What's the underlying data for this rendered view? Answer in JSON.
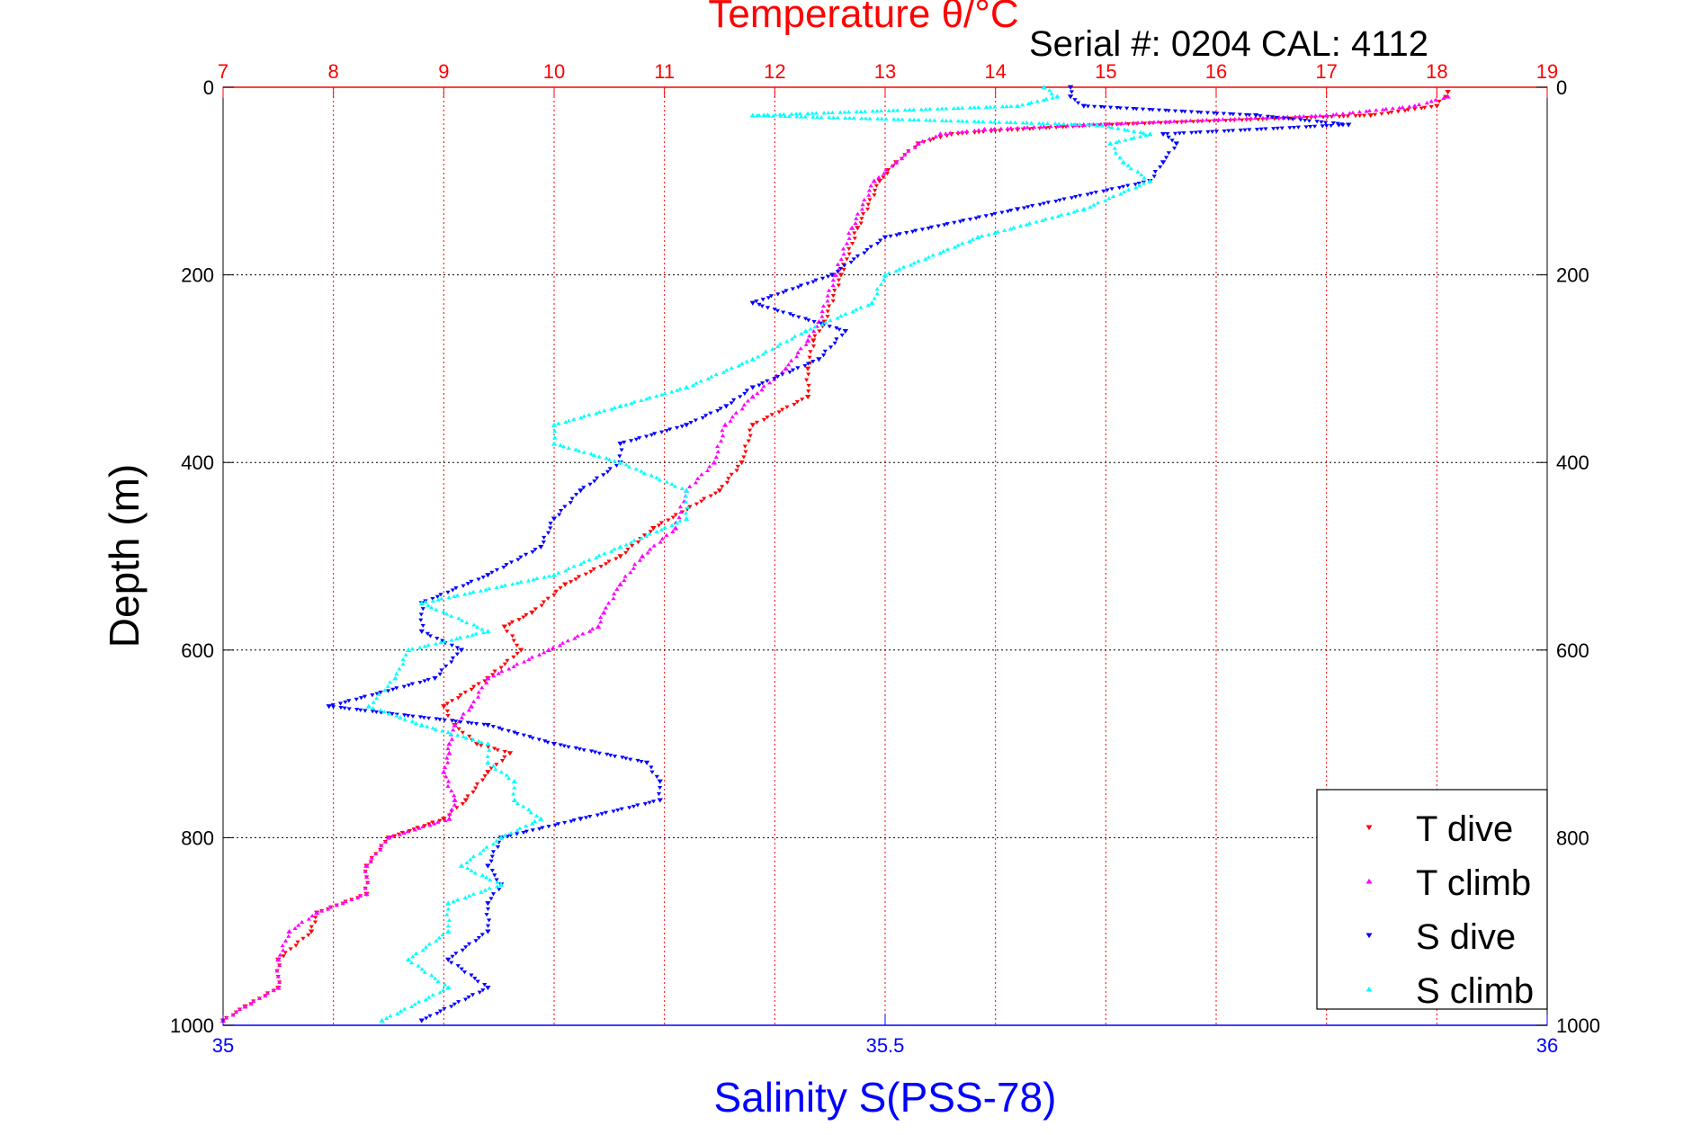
{
  "colors": {
    "temperature_axis": "#ff0000",
    "salinity_axis": "#0000ff",
    "depth_axis": "#000000",
    "t_dive": "#ff0000",
    "t_climb": "#ff00ff",
    "s_dive": "#0000ff",
    "s_climb": "#00ffff"
  },
  "chart_data": {
    "type": "scatter",
    "title": "Temperature θ/°C",
    "subtitle": "Serial #: 0204  CAL: 4112",
    "xlabel": "Salinity S(PSS-78)",
    "ylabel": "Depth (m)",
    "top_axis": {
      "label": "Temperature θ/°C",
      "range": [
        7,
        19
      ],
      "ticks": [
        "7",
        "8",
        "9",
        "10",
        "11",
        "12",
        "13",
        "14",
        "15",
        "16",
        "17",
        "18",
        "19"
      ]
    },
    "bottom_axis": {
      "label": "Salinity S(PSS-78)",
      "range": [
        35,
        36
      ],
      "ticks": [
        "35",
        "35.5",
        "36"
      ]
    },
    "y_axis": {
      "label": "Depth (m)",
      "range": [
        0,
        1000
      ],
      "reversed": true,
      "ticks": [
        "0",
        "200",
        "400",
        "600",
        "800",
        "1000"
      ]
    },
    "grid": true,
    "legend_position": "bottom-right",
    "series": [
      {
        "name": "T dive",
        "axis": "temperature",
        "marker": "triangle-down",
        "color": "#ff0000",
        "depth": [
          5,
          20,
          30,
          40,
          45,
          50,
          60,
          80,
          100,
          150,
          200,
          250,
          270,
          300,
          330,
          360,
          400,
          430,
          470,
          500,
          530,
          560,
          575,
          600,
          630,
          660,
          680,
          700,
          710,
          730,
          760,
          780,
          800,
          830,
          860,
          880,
          900,
          930,
          960,
          980,
          995
        ],
        "values": [
          18.1,
          18.0,
          17.4,
          15.0,
          14.2,
          13.6,
          13.3,
          13.1,
          12.95,
          12.75,
          12.6,
          12.45,
          12.35,
          12.3,
          12.3,
          11.8,
          11.7,
          11.5,
          10.9,
          10.6,
          10.1,
          9.8,
          9.55,
          9.7,
          9.4,
          9.0,
          9.1,
          9.3,
          9.6,
          9.4,
          9.2,
          9.0,
          8.5,
          8.3,
          8.3,
          7.85,
          7.8,
          7.5,
          7.5,
          7.2,
          7.0
        ]
      },
      {
        "name": "T climb",
        "axis": "temperature",
        "marker": "triangle-up",
        "color": "#ff00ff",
        "depth": [
          10,
          20,
          30,
          40,
          45,
          50,
          60,
          80,
          100,
          150,
          200,
          250,
          270,
          300,
          330,
          360,
          400,
          430,
          470,
          500,
          530,
          560,
          575,
          600,
          630,
          660,
          680,
          700,
          710,
          730,
          760,
          780,
          800,
          830,
          860,
          880,
          900,
          930,
          960,
          980,
          995
        ],
        "values": [
          18.1,
          17.8,
          17.0,
          14.8,
          13.9,
          13.5,
          13.3,
          13.1,
          12.9,
          12.7,
          12.55,
          12.4,
          12.3,
          12.1,
          11.8,
          11.55,
          11.45,
          11.2,
          11.1,
          10.8,
          10.6,
          10.45,
          10.4,
          9.95,
          9.4,
          9.25,
          9.1,
          9.05,
          9.05,
          9.0,
          9.1,
          9.05,
          8.5,
          8.3,
          8.3,
          7.85,
          7.6,
          7.5,
          7.5,
          7.2,
          7.0
        ]
      },
      {
        "name": "S dive",
        "axis": "salinity",
        "marker": "triangle-down",
        "color": "#0000ff",
        "depth": [
          0,
          10,
          20,
          30,
          40,
          50,
          60,
          80,
          100,
          130,
          160,
          200,
          230,
          260,
          290,
          320,
          340,
          360,
          380,
          400,
          430,
          460,
          490,
          520,
          550,
          580,
          600,
          630,
          660,
          680,
          700,
          720,
          740,
          760,
          780,
          800,
          830,
          850,
          870,
          900,
          930,
          960,
          995
        ],
        "values": [
          35.64,
          35.64,
          35.65,
          35.78,
          35.85,
          35.71,
          35.72,
          35.71,
          35.7,
          35.6,
          35.5,
          35.46,
          35.4,
          35.47,
          35.45,
          35.4,
          35.38,
          35.35,
          35.3,
          35.3,
          35.27,
          35.25,
          35.24,
          35.2,
          35.15,
          35.15,
          35.18,
          35.16,
          35.08,
          35.2,
          35.25,
          35.32,
          35.33,
          35.33,
          35.27,
          35.21,
          35.2,
          35.21,
          35.2,
          35.2,
          35.17,
          35.2,
          35.15
        ]
      },
      {
        "name": "S climb",
        "axis": "salinity",
        "marker": "triangle-up",
        "color": "#00ffff",
        "depth": [
          0,
          10,
          20,
          30,
          40,
          50,
          60,
          80,
          100,
          130,
          160,
          200,
          230,
          260,
          290,
          320,
          340,
          360,
          380,
          400,
          430,
          460,
          490,
          520,
          550,
          580,
          600,
          630,
          660,
          680,
          700,
          720,
          740,
          760,
          780,
          800,
          830,
          850,
          870,
          900,
          930,
          960,
          995
        ],
        "values": [
          35.62,
          35.63,
          35.6,
          35.4,
          35.66,
          35.7,
          35.67,
          35.68,
          35.7,
          35.65,
          35.57,
          35.5,
          35.49,
          35.44,
          35.4,
          35.35,
          35.3,
          35.25,
          35.25,
          35.3,
          35.35,
          35.35,
          35.3,
          35.25,
          35.15,
          35.2,
          35.14,
          35.13,
          35.11,
          35.15,
          35.2,
          35.2,
          35.22,
          35.22,
          35.24,
          35.21,
          35.18,
          35.21,
          35.17,
          35.17,
          35.14,
          35.17,
          35.12
        ]
      }
    ]
  }
}
